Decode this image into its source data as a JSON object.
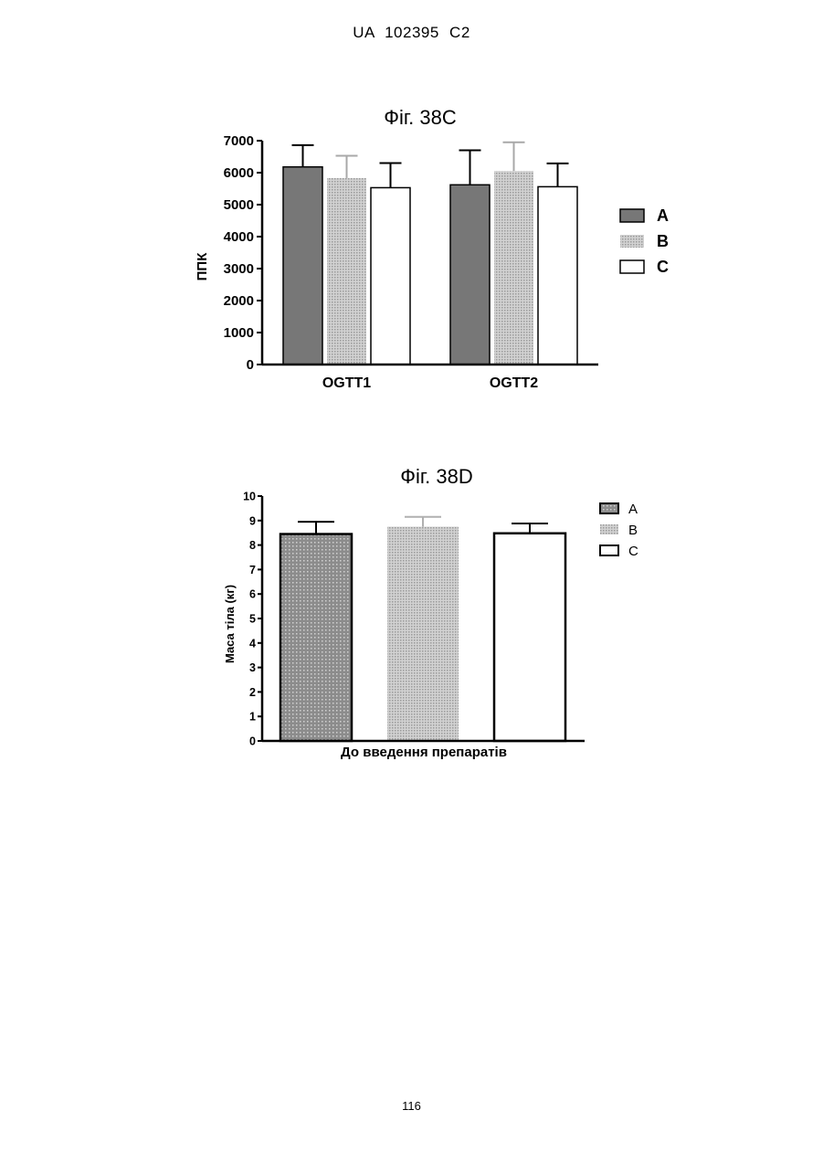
{
  "header": {
    "text": "UA   102395   C2"
  },
  "page_number": "116",
  "chart_data": [
    {
      "type": "bar",
      "title": "Фіг. 38C",
      "xlabel": "",
      "ylabel": "ППК",
      "ylim": [
        0,
        7000
      ],
      "yticks": [
        0,
        1000,
        2000,
        3000,
        4000,
        5000,
        6000,
        7000
      ],
      "categories": [
        "OGTT1",
        "OGTT2"
      ],
      "legend_position": "right",
      "grid": false,
      "series": [
        {
          "name": "A",
          "values": [
            6180,
            5620
          ],
          "errors": [
            680,
            1080
          ],
          "color": "#777777",
          "pattern": "solid"
        },
        {
          "name": "B",
          "values": [
            5830,
            6050
          ],
          "errors": [
            700,
            900
          ],
          "color": "#c8c8c8",
          "pattern": "dotted"
        },
        {
          "name": "C",
          "values": [
            5530,
            5560
          ],
          "errors": [
            770,
            730
          ],
          "color": "#ffffff",
          "pattern": "none"
        }
      ]
    },
    {
      "type": "bar",
      "title": "Фіг. 38D",
      "xlabel": "До введення препаратів",
      "ylabel": "Маса тіла (кг)",
      "ylim": [
        0,
        10
      ],
      "yticks": [
        0,
        1,
        2,
        3,
        4,
        5,
        6,
        7,
        8,
        9,
        10
      ],
      "categories": [
        ""
      ],
      "legend_position": "top-right",
      "grid": false,
      "series": [
        {
          "name": "A",
          "values": [
            8.45
          ],
          "errors": [
            0.5
          ],
          "color": "#8a8a8a",
          "pattern": "dotted-dark"
        },
        {
          "name": "B",
          "values": [
            8.75
          ],
          "errors": [
            0.4
          ],
          "color": "#c8c8c8",
          "pattern": "dotted"
        },
        {
          "name": "C",
          "values": [
            8.48
          ],
          "errors": [
            0.4
          ],
          "color": "#ffffff",
          "pattern": "none"
        }
      ]
    }
  ]
}
